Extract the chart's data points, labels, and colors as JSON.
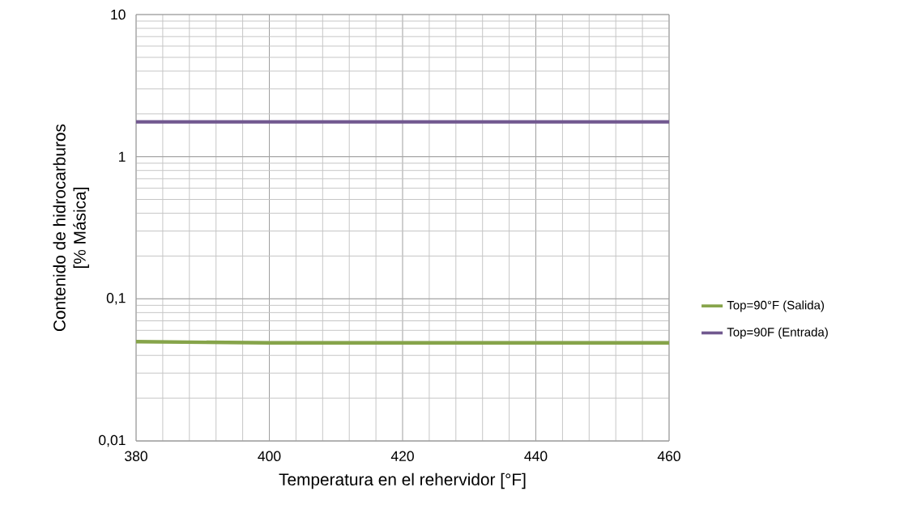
{
  "chart_data": {
    "type": "line",
    "xlabel": "Temperatura en el rehervidor [°F]",
    "ylabel": "Contenido de hidrocarburos\n[% Másica]",
    "x": [
      380,
      400,
      420,
      440,
      460
    ],
    "series": [
      {
        "name": "Top=90°F (Salida)",
        "color": "#86a44a",
        "values": [
          0.05,
          0.049,
          0.049,
          0.049,
          0.049
        ]
      },
      {
        "name": "Top=90F (Entrada)",
        "color": "#71588f",
        "values": [
          1.76,
          1.76,
          1.76,
          1.76,
          1.76
        ]
      }
    ],
    "xlim": [
      380,
      460
    ],
    "xticks": [
      380,
      400,
      420,
      440,
      460
    ],
    "ylim": [
      0.01,
      10
    ],
    "yticks": [
      {
        "value": 0.01,
        "label": "0,01"
      },
      {
        "value": 0.1,
        "label": "0,1"
      },
      1,
      10
    ],
    "log": true,
    "grid": true,
    "legend": "right",
    "marker": "none",
    "line_style": "solid"
  }
}
